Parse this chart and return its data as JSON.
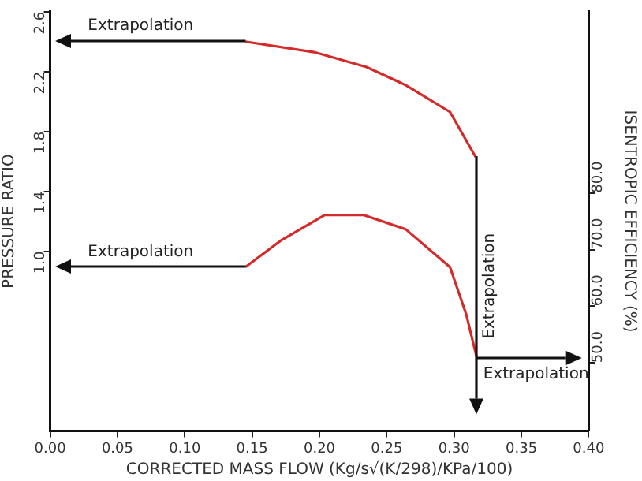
{
  "chart_data": {
    "type": "line",
    "xlabel": "CORRECTED MASS FLOW (Kg/s√(K/298)/KPa/100)",
    "ylabel": "PRESSURE RATIO",
    "y2label": "ISENTROPIC EFFICIENCY (%)",
    "xlim": [
      0,
      0.4
    ],
    "xticks": [
      {
        "value": 0,
        "label": "0.00"
      },
      {
        "value": 0.05,
        "label": "0.05"
      },
      {
        "value": 0.1,
        "label": "0.10"
      },
      {
        "value": 0.15,
        "label": "0.15"
      },
      {
        "value": 0.2,
        "label": "0.20"
      },
      {
        "value": 0.25,
        "label": "0.25"
      },
      {
        "value": 0.3,
        "label": "0.30"
      },
      {
        "value": 0.35,
        "label": "0.35"
      },
      {
        "value": 0.4,
        "label": "0.40"
      }
    ],
    "ylim": [
      -0.2,
      2.6
    ],
    "yticks": [
      {
        "value": 1,
        "label": "1.0"
      },
      1.4,
      1.8,
      2.2,
      2.6
    ],
    "y2lim": [
      38,
      112
    ],
    "y2ticks": [
      {
        "value": 50,
        "label": "50.0"
      },
      {
        "value": 60,
        "label": "60.0"
      },
      {
        "value": 70,
        "label": "70.0"
      },
      {
        "value": 80,
        "label": "80.0"
      }
    ],
    "series": [
      {
        "color": "#d42a2a",
        "x": [
          0.145,
          0.196,
          0.235,
          0.264,
          0.297,
          0.316
        ],
        "values": [
          2.4,
          2.33,
          2.23,
          2.11,
          1.93,
          1.63
        ]
      },
      {
        "color": "#d42a2a",
        "axis": "y2",
        "x": [
          0.145,
          0.172,
          0.204,
          0.233,
          0.264,
          0.297,
          0.309,
          0.317
        ],
        "values": [
          66.9,
          71.7,
          76.1,
          76.1,
          73.6,
          66.9,
          58.6,
          50.8
        ]
      }
    ],
    "annotations": [
      {
        "text": "Extrapolation",
        "x": 0.145,
        "y": 2.4
      },
      {
        "text": "Extrapolation",
        "x": 0.145,
        "y": 0.89
      },
      "Extrapolation",
      "Extrapolation"
    ],
    "grid": false,
    "legend": false,
    "marker": "none",
    "line_style": "solid"
  }
}
